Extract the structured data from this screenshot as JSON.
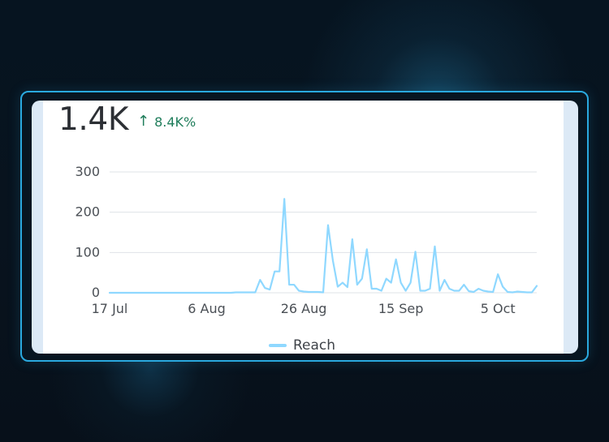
{
  "summary": {
    "value": "1.4K",
    "change": "8.4K%",
    "change_icon": "arrow-up-icon"
  },
  "colors": {
    "series": "#8fd8ff",
    "grid": "#dfe3e7",
    "tick": "#4a4f55",
    "positive": "#1f7d5b"
  },
  "chart_data": {
    "type": "line",
    "title": "",
    "xlabel": "",
    "ylabel": "",
    "ylim": [
      0,
      300
    ],
    "yticks": [
      0,
      100,
      200,
      300
    ],
    "xticks": [
      "17 Jul",
      "6 Aug",
      "26 Aug",
      "15 Sep",
      "5 Oct"
    ],
    "grid": true,
    "legend": "bottom-center",
    "series": [
      {
        "name": "Reach",
        "x": [
          "2024-07-17",
          "2024-07-18",
          "2024-07-19",
          "2024-07-20",
          "2024-07-21",
          "2024-07-22",
          "2024-07-23",
          "2024-07-24",
          "2024-07-25",
          "2024-07-26",
          "2024-07-27",
          "2024-07-28",
          "2024-07-29",
          "2024-07-30",
          "2024-07-31",
          "2024-08-01",
          "2024-08-02",
          "2024-08-03",
          "2024-08-04",
          "2024-08-05",
          "2024-08-06",
          "2024-08-07",
          "2024-08-08",
          "2024-08-09",
          "2024-08-10",
          "2024-08-11",
          "2024-08-12",
          "2024-08-13",
          "2024-08-14",
          "2024-08-15",
          "2024-08-16",
          "2024-08-17",
          "2024-08-18",
          "2024-08-19",
          "2024-08-20",
          "2024-08-21",
          "2024-08-22",
          "2024-08-23",
          "2024-08-24",
          "2024-08-25",
          "2024-08-26",
          "2024-08-27",
          "2024-08-28",
          "2024-08-29",
          "2024-08-30",
          "2024-08-31",
          "2024-09-01",
          "2024-09-02",
          "2024-09-03",
          "2024-09-04",
          "2024-09-05",
          "2024-09-06",
          "2024-09-07",
          "2024-09-08",
          "2024-09-09",
          "2024-09-10",
          "2024-09-11",
          "2024-09-12",
          "2024-09-13",
          "2024-09-14",
          "2024-09-15",
          "2024-09-16",
          "2024-09-17",
          "2024-09-18",
          "2024-09-19",
          "2024-09-20",
          "2024-09-21",
          "2024-09-22",
          "2024-09-23",
          "2024-09-24",
          "2024-09-25",
          "2024-09-26",
          "2024-09-27",
          "2024-09-28",
          "2024-09-29",
          "2024-09-30",
          "2024-10-01",
          "2024-10-02",
          "2024-10-03",
          "2024-10-04",
          "2024-10-05",
          "2024-10-06",
          "2024-10-07",
          "2024-10-08",
          "2024-10-09",
          "2024-10-10",
          "2024-10-11",
          "2024-10-12",
          "2024-10-13"
        ],
        "values": [
          0,
          0,
          0,
          0,
          0,
          0,
          0,
          0,
          0,
          0,
          0,
          0,
          0,
          0,
          0,
          0,
          0,
          0,
          0,
          0,
          0,
          0,
          0,
          0,
          0,
          0,
          1,
          1,
          1,
          1,
          1,
          32,
          12,
          8,
          53,
          53,
          233,
          20,
          20,
          5,
          3,
          2,
          2,
          2,
          1,
          168,
          80,
          15,
          25,
          14,
          133,
          20,
          35,
          108,
          10,
          10,
          5,
          35,
          25,
          83,
          25,
          5,
          25,
          102,
          5,
          5,
          10,
          115,
          5,
          32,
          10,
          5,
          5,
          20,
          4,
          2,
          10,
          5,
          3,
          2,
          46,
          15,
          2,
          1,
          3,
          2,
          1,
          1,
          17
        ]
      }
    ]
  }
}
